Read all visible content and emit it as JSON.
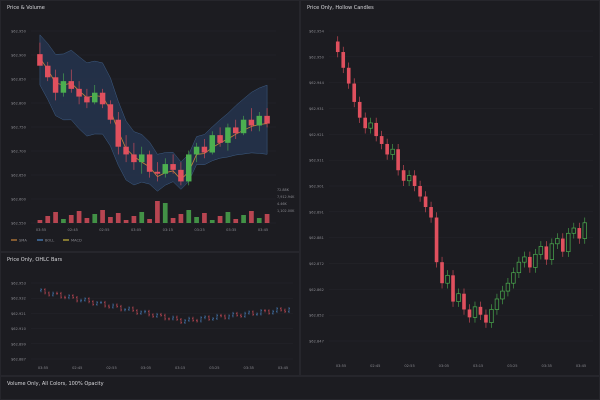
{
  "panels": {
    "p1_title": "Price & Volume",
    "p2_title": "Price Only, Hollow Candles",
    "p3_title": "Price Only, OHLC Bars",
    "p4_title": "Volume Only, All Colors, 100% Opacity"
  },
  "legend": [
    {
      "label": "SMA",
      "color": "#c8833a"
    },
    {
      "label": "BOLL",
      "color": "#4a86c8"
    },
    {
      "label": "MACD",
      "color": "#c8b43a"
    }
  ],
  "vol_labels": [
    "72.88K",
    "7,912.94K",
    "4.46K",
    "1,102.00K"
  ],
  "colors": {
    "up": "#4caf50",
    "down": "#e0505e",
    "band": "#24344e",
    "sma": "#c8833a",
    "grid": "#26262c",
    "axis": "#8a8a90",
    "bg": "#1c1c21"
  },
  "chart_data": [
    {
      "type": "candlestick",
      "title": "Price & Volume",
      "ylim": [
        61.88,
        62.95
      ],
      "yticks": [
        "$62.950",
        "$62.900",
        "$62.850",
        "$62.800",
        "$62.750",
        "$62.700",
        "$62.650",
        "$62.600",
        "$62.550"
      ],
      "xticks": [
        "03:55",
        "02:45",
        "02:55",
        "03:05",
        "03:15",
        "03:25",
        "03:35",
        "03:45"
      ],
      "candles": [
        [
          62.9,
          62.93,
          62.88,
          62.87
        ],
        [
          62.87,
          62.88,
          62.83,
          62.84
        ],
        [
          62.84,
          62.86,
          62.78,
          62.8
        ],
        [
          62.8,
          62.85,
          62.79,
          62.83
        ],
        [
          62.83,
          62.86,
          62.8,
          62.81
        ],
        [
          62.81,
          62.83,
          62.77,
          62.79
        ],
        [
          62.79,
          62.81,
          62.76,
          62.775
        ],
        [
          62.775,
          62.82,
          62.77,
          62.8
        ],
        [
          62.8,
          62.81,
          62.76,
          62.77
        ],
        [
          62.77,
          62.78,
          62.72,
          62.73
        ],
        [
          62.73,
          62.75,
          62.64,
          62.66
        ],
        [
          62.66,
          62.69,
          62.62,
          62.64
        ],
        [
          62.64,
          62.67,
          62.6,
          62.62
        ],
        [
          62.62,
          62.66,
          62.59,
          62.64
        ],
        [
          62.64,
          62.65,
          62.58,
          62.595
        ],
        [
          62.595,
          62.62,
          62.57,
          62.59
        ],
        [
          62.59,
          62.63,
          62.58,
          62.615
        ],
        [
          62.615,
          62.64,
          62.59,
          62.6
        ],
        [
          62.6,
          62.62,
          62.56,
          62.57
        ],
        [
          62.57,
          62.65,
          62.56,
          62.64
        ],
        [
          62.64,
          62.67,
          62.62,
          62.66
        ],
        [
          62.66,
          62.68,
          62.63,
          62.645
        ],
        [
          62.645,
          62.7,
          62.64,
          62.69
        ],
        [
          62.69,
          62.71,
          62.66,
          62.67
        ],
        [
          62.67,
          62.72,
          62.65,
          62.71
        ],
        [
          62.71,
          62.73,
          62.68,
          62.695
        ],
        [
          62.695,
          62.74,
          62.69,
          62.73
        ],
        [
          62.73,
          62.76,
          62.7,
          62.715
        ],
        [
          62.715,
          62.75,
          62.7,
          62.74
        ],
        [
          62.74,
          62.76,
          62.71,
          62.72
        ]
      ]
    },
    {
      "type": "candlestick-hollow",
      "title": "Price Only, Hollow Candles",
      "yticks": [
        "$62.954",
        "$62.950",
        "$62.944",
        "$62.931",
        "$62.921",
        "$62.911",
        "$62.901",
        "$62.891",
        "$62.881",
        "$62.872",
        "$62.862",
        "$62.852",
        "$62.847"
      ],
      "xticks": [
        "03:55",
        "02:45",
        "02:55",
        "03:05",
        "03:15",
        "03:25",
        "03:35",
        "03:45"
      ]
    },
    {
      "type": "ohlc",
      "title": "Price Only, OHLC Bars",
      "yticks": [
        "$62.953",
        "$62.932",
        "$62.921",
        "$62.910",
        "$62.899",
        "$62.887"
      ],
      "xticks": [
        "03:55",
        "02:45",
        "02:55",
        "03:05",
        "03:15",
        "03:25",
        "03:35",
        "03:45"
      ]
    }
  ]
}
